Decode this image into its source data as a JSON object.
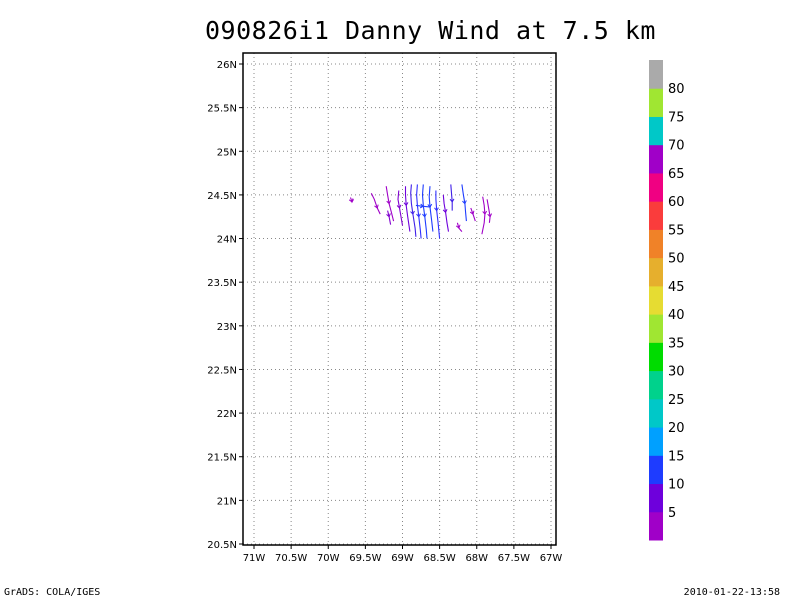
{
  "title": "090826i1 Danny Wind at 7.5 km",
  "footer": {
    "left": "GrADS: COLA/IGES",
    "right": "2010-01-22-13:58"
  },
  "chart_data": {
    "type": "streamline-map",
    "lon_ticks": [
      "71W",
      "70.5W",
      "70W",
      "69.5W",
      "69W",
      "68.5W",
      "68W",
      "67.5W",
      "67W"
    ],
    "lat_ticks": [
      "26N",
      "25.5N",
      "25N",
      "24.5N",
      "24N",
      "23.5N",
      "23N",
      "22.5N",
      "22N",
      "21.5N",
      "21N",
      "20.5N"
    ],
    "lon_range": [
      -71.0,
      -67.0
    ],
    "lat_range": [
      20.5,
      26.0
    ],
    "grid": true,
    "colorbar": {
      "labels": [
        "5",
        "10",
        "15",
        "20",
        "25",
        "30",
        "35",
        "40",
        "45",
        "50",
        "55",
        "60",
        "65",
        "70",
        "75",
        "80"
      ],
      "colors": [
        "#a000c8",
        "#6e00dc",
        "#1e3cff",
        "#00a0ff",
        "#00c8c8",
        "#00d28c",
        "#00dc00",
        "#a0e632",
        "#e6dc32",
        "#e6af2d",
        "#f08228",
        "#fa3c3c",
        "#f00082",
        "#a000c8",
        "#00c8c8",
        "#a0e632",
        "#aaaaaa"
      ]
    },
    "streamlines": [
      {
        "color": "#a000c8",
        "pts": [
          [
            -69.7,
            24.47
          ],
          [
            -69.68,
            24.42
          ],
          [
            -69.66,
            24.45
          ]
        ]
      },
      {
        "color": "#a000c8",
        "pts": [
          [
            -69.42,
            24.52
          ],
          [
            -69.38,
            24.45
          ],
          [
            -69.34,
            24.35
          ],
          [
            -69.3,
            24.28
          ]
        ]
      },
      {
        "color": "#a000c8",
        "pts": [
          [
            -69.22,
            24.6
          ],
          [
            -69.2,
            24.5
          ],
          [
            -69.18,
            24.4
          ],
          [
            -69.15,
            24.3
          ],
          [
            -69.12,
            24.2
          ]
        ]
      },
      {
        "color": "#8000d0",
        "pts": [
          [
            -69.2,
            24.32
          ],
          [
            -69.18,
            24.25
          ],
          [
            -69.16,
            24.16
          ]
        ]
      },
      {
        "color": "#8000d0",
        "pts": [
          [
            -69.05,
            24.55
          ],
          [
            -69.06,
            24.45
          ],
          [
            -69.04,
            24.35
          ],
          [
            -69.02,
            24.25
          ],
          [
            -69.0,
            24.15
          ]
        ]
      },
      {
        "color": "#6e00dc",
        "pts": [
          [
            -68.96,
            24.6
          ],
          [
            -68.96,
            24.5
          ],
          [
            -68.95,
            24.38
          ],
          [
            -68.93,
            24.25
          ],
          [
            -68.9,
            24.08
          ]
        ]
      },
      {
        "color": "#4020e8",
        "pts": [
          [
            -68.88,
            24.62
          ],
          [
            -68.89,
            24.52
          ],
          [
            -68.88,
            24.4
          ],
          [
            -68.86,
            24.28
          ],
          [
            -68.83,
            24.12
          ],
          [
            -68.82,
            24.02
          ]
        ]
      },
      {
        "color": "#3030ff",
        "pts": [
          [
            -68.8,
            24.62
          ],
          [
            -68.81,
            24.5
          ],
          [
            -68.8,
            24.38
          ],
          [
            -68.78,
            24.25
          ],
          [
            -68.76,
            24.1
          ],
          [
            -68.75,
            24.0
          ]
        ]
      },
      {
        "color": "#1e3cff",
        "pts": [
          [
            -68.72,
            24.62
          ],
          [
            -68.73,
            24.5
          ],
          [
            -68.72,
            24.38
          ],
          [
            -68.7,
            24.25
          ],
          [
            -68.68,
            24.1
          ],
          [
            -68.67,
            24.0
          ]
        ]
      },
      {
        "color": "#1e3cff",
        "pts": [
          [
            -68.63,
            24.6
          ],
          [
            -68.64,
            24.48
          ],
          [
            -68.63,
            24.36
          ],
          [
            -68.61,
            24.22
          ],
          [
            -68.59,
            24.08
          ]
        ]
      },
      {
        "color": "#3030ff",
        "pts": [
          [
            -68.55,
            24.55
          ],
          [
            -68.55,
            24.45
          ],
          [
            -68.54,
            24.32
          ],
          [
            -68.52,
            24.18
          ],
          [
            -68.5,
            24.0
          ]
        ]
      },
      {
        "color": "#6e00dc",
        "pts": [
          [
            -68.45,
            24.5
          ],
          [
            -68.44,
            24.4
          ],
          [
            -68.42,
            24.3
          ],
          [
            -68.4,
            24.18
          ],
          [
            -68.38,
            24.08
          ]
        ]
      },
      {
        "color": "#4020e8",
        "pts": [
          [
            -68.35,
            24.62
          ],
          [
            -68.34,
            24.52
          ],
          [
            -68.33,
            24.42
          ],
          [
            -68.33,
            24.32
          ]
        ]
      },
      {
        "color": "#1e3cff",
        "pts": [
          [
            -68.2,
            24.62
          ],
          [
            -68.18,
            24.5
          ],
          [
            -68.16,
            24.4
          ],
          [
            -68.15,
            24.3
          ],
          [
            -68.14,
            24.2
          ]
        ]
      },
      {
        "color": "#a000c8",
        "pts": [
          [
            -68.26,
            24.18
          ],
          [
            -68.24,
            24.12
          ],
          [
            -68.2,
            24.08
          ]
        ]
      },
      {
        "color": "#a000c8",
        "pts": [
          [
            -68.08,
            24.35
          ],
          [
            -68.05,
            24.28
          ],
          [
            -68.02,
            24.2
          ]
        ]
      },
      {
        "color": "#a000c8",
        "pts": [
          [
            -67.92,
            24.48
          ],
          [
            -67.9,
            24.38
          ],
          [
            -67.89,
            24.28
          ],
          [
            -67.9,
            24.18
          ],
          [
            -67.93,
            24.05
          ]
        ]
      },
      {
        "color": "#a000c8",
        "pts": [
          [
            -67.86,
            24.45
          ],
          [
            -67.84,
            24.35
          ],
          [
            -67.82,
            24.25
          ],
          [
            -67.83,
            24.18
          ]
        ]
      },
      {
        "color": "#1e3cff",
        "pts": [
          [
            -68.82,
            24.38
          ],
          [
            -68.72,
            24.37
          ],
          [
            -68.62,
            24.36
          ]
        ]
      }
    ]
  }
}
